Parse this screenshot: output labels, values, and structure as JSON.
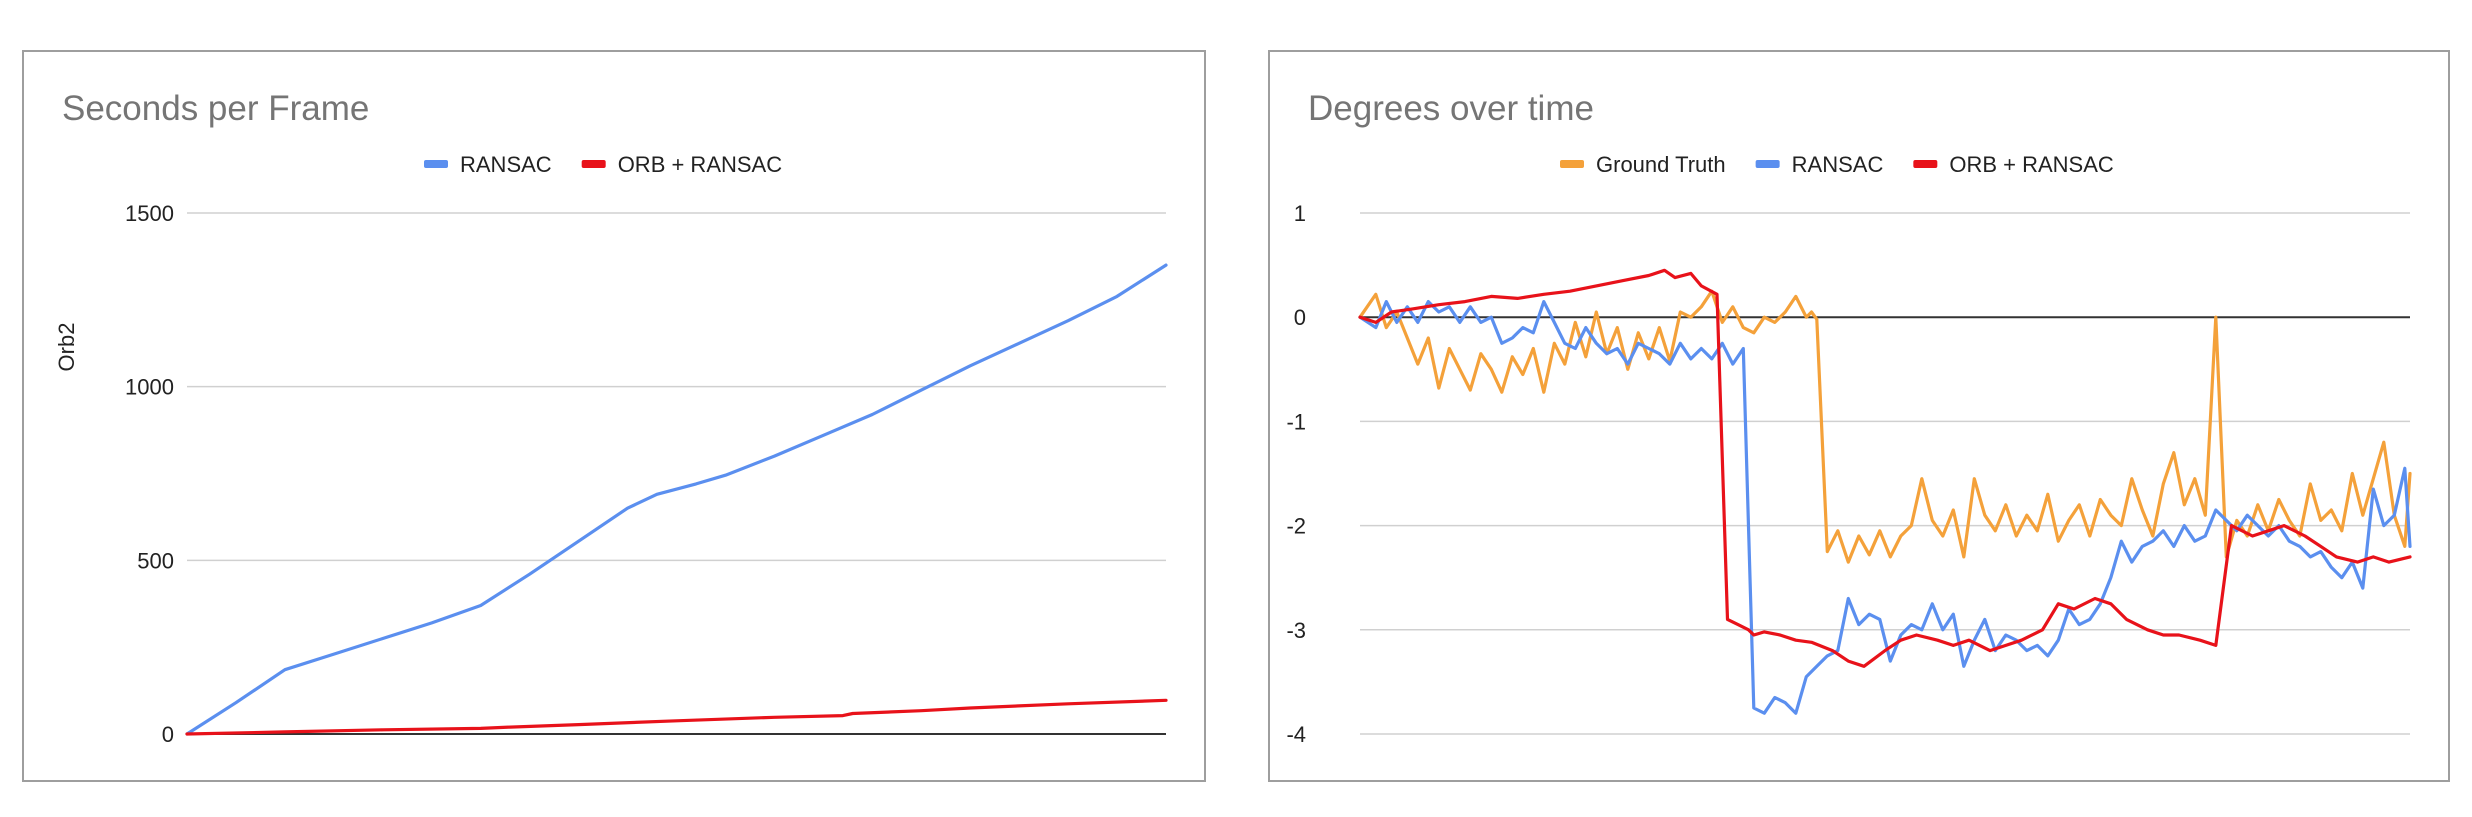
{
  "colors": {
    "ransac": "#5b8fef",
    "orb_ransac": "#e8121a",
    "ground_truth": "#f4a13a",
    "grid": "#d0d0d0",
    "zero": "#333333"
  },
  "chart_data": [
    {
      "type": "line",
      "title": "Seconds per Frame",
      "xlabel": "",
      "ylabel": "Orb2",
      "ylim": [
        0,
        1500
      ],
      "yticks": [
        0,
        500,
        1000,
        1500
      ],
      "grid": true,
      "legend": "top",
      "xlim": [
        0,
        100
      ],
      "series": [
        {
          "name": "RANSAC",
          "color": "#5b8fef",
          "x": [
            0,
            5,
            10,
            15,
            20,
            25,
            30,
            35,
            40,
            45,
            48,
            52,
            55,
            60,
            65,
            70,
            75,
            80,
            85,
            90,
            95,
            100
          ],
          "y": [
            0,
            90,
            185,
            230,
            275,
            320,
            370,
            460,
            555,
            650,
            690,
            720,
            745,
            800,
            860,
            920,
            990,
            1060,
            1125,
            1190,
            1260,
            1350
          ]
        },
        {
          "name": "ORB + RANSAC",
          "color": "#e8121a",
          "x": [
            0,
            10,
            20,
            30,
            33,
            40,
            50,
            60,
            67,
            68,
            75,
            80,
            90,
            100
          ],
          "y": [
            0,
            6,
            12,
            16,
            20,
            27,
            38,
            48,
            53,
            59,
            67,
            75,
            87,
            97
          ]
        }
      ]
    },
    {
      "type": "line",
      "title": "Degrees over time",
      "xlabel": "",
      "ylabel": "",
      "ylim": [
        -4,
        1
      ],
      "yticks": [
        -4,
        -3,
        -2,
        -1,
        0,
        1
      ],
      "grid": true,
      "legend": "top",
      "xlim": [
        0,
        200
      ],
      "series": [
        {
          "name": "Ground Truth",
          "color": "#f4a13a",
          "x": [
            0,
            3,
            5,
            7,
            9,
            11,
            13,
            15,
            17,
            19,
            21,
            23,
            25,
            27,
            29,
            31,
            33,
            35,
            37,
            39,
            41,
            43,
            45,
            47,
            49,
            51,
            53,
            55,
            57,
            59,
            61,
            63,
            65,
            67,
            69,
            71,
            73,
            75,
            77,
            79,
            81,
            83,
            85,
            86,
            87,
            89,
            91,
            93,
            95,
            97,
            99,
            101,
            103,
            105,
            107,
            109,
            111,
            113,
            115,
            117,
            119,
            121,
            123,
            125,
            127,
            129,
            131,
            133,
            135,
            137,
            139,
            141,
            143,
            145,
            147,
            149,
            151,
            153,
            155,
            157,
            159,
            161,
            163,
            165,
            167,
            169,
            171,
            173,
            175,
            177,
            179,
            181,
            183,
            185,
            187,
            189,
            191,
            193,
            195,
            197,
            199,
            200
          ],
          "y": [
            0,
            0.22,
            -0.1,
            0.05,
            -0.2,
            -0.45,
            -0.2,
            -0.68,
            -0.3,
            -0.5,
            -0.7,
            -0.35,
            -0.5,
            -0.72,
            -0.38,
            -0.55,
            -0.3,
            -0.72,
            -0.25,
            -0.45,
            -0.05,
            -0.38,
            0.05,
            -0.35,
            -0.1,
            -0.5,
            -0.15,
            -0.4,
            -0.1,
            -0.42,
            0.05,
            0.0,
            0.1,
            0.25,
            -0.05,
            0.1,
            -0.1,
            -0.15,
            0.0,
            -0.05,
            0.05,
            0.2,
            0.0,
            0.05,
            -0.02,
            -2.25,
            -2.05,
            -2.35,
            -2.1,
            -2.28,
            -2.05,
            -2.3,
            -2.1,
            -2.0,
            -1.55,
            -1.95,
            -2.1,
            -1.85,
            -2.3,
            -1.55,
            -1.9,
            -2.05,
            -1.8,
            -2.1,
            -1.9,
            -2.05,
            -1.7,
            -2.15,
            -1.95,
            -1.8,
            -2.1,
            -1.75,
            -1.9,
            -2.0,
            -1.55,
            -1.85,
            -2.1,
            -1.6,
            -1.3,
            -1.8,
            -1.55,
            -1.9,
            0.0,
            -2.3,
            -1.95,
            -2.1,
            -1.8,
            -2.05,
            -1.75,
            -1.95,
            -2.1,
            -1.6,
            -1.95,
            -1.85,
            -2.05,
            -1.5,
            -1.9,
            -1.55,
            -1.2,
            -1.9,
            -2.2,
            -1.5
          ],
          "x_extra_note": ""
        },
        {
          "name": "RANSAC",
          "color": "#5b8fef",
          "x": [
            0,
            3,
            5,
            7,
            9,
            11,
            13,
            15,
            17,
            19,
            21,
            23,
            25,
            27,
            29,
            31,
            33,
            35,
            37,
            39,
            41,
            43,
            45,
            47,
            49,
            51,
            53,
            55,
            57,
            59,
            61,
            63,
            65,
            67,
            69,
            71,
            73,
            75,
            77,
            79,
            81,
            83,
            85,
            87,
            89,
            91,
            93,
            95,
            97,
            99,
            101,
            103,
            105,
            107,
            109,
            111,
            113,
            115,
            117,
            119,
            121,
            123,
            125,
            127,
            129,
            131,
            133,
            135,
            137,
            139,
            141,
            143,
            145,
            147,
            149,
            151,
            153,
            155,
            157,
            159,
            161,
            163,
            165,
            167,
            169,
            171,
            173,
            175,
            177,
            179,
            181,
            183,
            185,
            187,
            189,
            191,
            193,
            195,
            197,
            199,
            200
          ],
          "y": [
            0,
            -0.1,
            0.15,
            -0.05,
            0.1,
            -0.05,
            0.15,
            0.05,
            0.1,
            -0.05,
            0.1,
            -0.05,
            0.0,
            -0.25,
            -0.2,
            -0.1,
            -0.15,
            0.15,
            -0.05,
            -0.25,
            -0.3,
            -0.1,
            -0.25,
            -0.35,
            -0.3,
            -0.45,
            -0.25,
            -0.3,
            -0.35,
            -0.45,
            -0.25,
            -0.4,
            -0.3,
            -0.4,
            -0.25,
            -0.45,
            -0.3,
            -3.75,
            -3.8,
            -3.65,
            -3.7,
            -3.8,
            -3.45,
            -3.35,
            -3.25,
            -3.2,
            -2.7,
            -2.95,
            -2.85,
            -2.9,
            -3.3,
            -3.05,
            -2.95,
            -3.0,
            -2.75,
            -3.0,
            -2.85,
            -3.35,
            -3.1,
            -2.9,
            -3.2,
            -3.05,
            -3.1,
            -3.2,
            -3.15,
            -3.25,
            -3.1,
            -2.8,
            -2.95,
            -2.9,
            -2.75,
            -2.5,
            -2.15,
            -2.35,
            -2.2,
            -2.15,
            -2.05,
            -2.2,
            -2.0,
            -2.15,
            -2.1,
            -1.85,
            -1.95,
            -2.05,
            -1.9,
            -2.0,
            -2.1,
            -2.0,
            -2.15,
            -2.2,
            -2.3,
            -2.25,
            -2.4,
            -2.5,
            -2.35,
            -2.6,
            -1.65,
            -2.0,
            -1.9,
            -1.45,
            -2.2
          ],
          "x_extra_note": ""
        },
        {
          "name": "ORB + RANSAC",
          "color": "#e8121a",
          "x": [
            0,
            3,
            6,
            10,
            15,
            20,
            25,
            30,
            35,
            40,
            45,
            50,
            55,
            58,
            60,
            63,
            65,
            68,
            70,
            72,
            74,
            75,
            77,
            80,
            83,
            86,
            90,
            93,
            96,
            100,
            103,
            106,
            110,
            113,
            116,
            120,
            123,
            126,
            130,
            133,
            136,
            140,
            143,
            146,
            150,
            153,
            156,
            160,
            163,
            166,
            170,
            173,
            176,
            180,
            183,
            186,
            190,
            193,
            196,
            200
          ],
          "y": [
            0,
            -0.05,
            0.05,
            0.08,
            0.12,
            0.15,
            0.2,
            0.18,
            0.22,
            0.25,
            0.3,
            0.35,
            0.4,
            0.45,
            0.38,
            0.42,
            0.3,
            0.22,
            -2.9,
            -2.95,
            -3.0,
            -3.05,
            -3.02,
            -3.05,
            -3.1,
            -3.12,
            -3.2,
            -3.3,
            -3.35,
            -3.2,
            -3.1,
            -3.05,
            -3.1,
            -3.15,
            -3.1,
            -3.2,
            -3.15,
            -3.1,
            -3.0,
            -2.75,
            -2.8,
            -2.7,
            -2.75,
            -2.9,
            -3.0,
            -3.05,
            -3.05,
            -3.1,
            -3.15,
            -2.0,
            -2.1,
            -2.05,
            -2.0,
            -2.1,
            -2.2,
            -2.3,
            -2.35,
            -2.3,
            -2.35,
            -2.3
          ],
          "x_extra_note": ""
        }
      ]
    }
  ]
}
